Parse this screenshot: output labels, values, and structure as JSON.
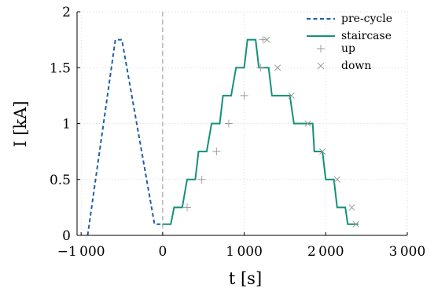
{
  "chart_data": {
    "type": "line",
    "xlabel": "t [s]",
    "ylabel": "I [kA]",
    "xlim": [
      -1050,
      3000
    ],
    "ylim": [
      0,
      2
    ],
    "xticks": [
      -1000,
      0,
      1000,
      2000,
      3000
    ],
    "xtick_labels": [
      "−1 000",
      "0",
      "1 000",
      "2 000",
      "3 000"
    ],
    "yticks": [
      0,
      0.5,
      1,
      1.5,
      2
    ],
    "ytick_labels": [
      "0",
      "0.5",
      "1",
      "1.5",
      "2"
    ],
    "grid": true,
    "vline_x": 0,
    "legend_position": "top-right",
    "colors": {
      "pre_cycle": "#1f5fa8",
      "staircase": "#13917a",
      "marker": "#999999",
      "vline": "#aaaaaa",
      "grid": "#d9d9d9"
    },
    "series": [
      {
        "name": "pre-cycle",
        "style": "dashed",
        "x": [
          -920,
          -580,
          -500,
          -100,
          0
        ],
        "y": [
          0,
          1.75,
          1.75,
          0.1,
          0.1
        ]
      },
      {
        "name": "staircase",
        "style": "solid",
        "x": [
          0,
          100,
          140,
          240,
          300,
          400,
          440,
          540,
          600,
          700,
          740,
          840,
          900,
          1000,
          1040,
          1140,
          1180,
          1300,
          1340,
          1440,
          1490,
          1560,
          1610,
          1700,
          1740,
          1840,
          1860,
          1960,
          2000,
          2100,
          2140,
          2240,
          2270,
          2370,
          2400
        ],
        "y": [
          0.1,
          0.1,
          0.25,
          0.25,
          0.5,
          0.5,
          0.75,
          0.75,
          1.0,
          1.0,
          1.25,
          1.25,
          1.5,
          1.5,
          1.75,
          1.75,
          1.5,
          1.5,
          1.25,
          1.25,
          1.25,
          1.25,
          1.0,
          1.0,
          1.0,
          1.0,
          0.75,
          0.75,
          0.5,
          0.5,
          0.25,
          0.25,
          0.1,
          0.1,
          0.1
        ]
      },
      {
        "name": "up",
        "style": "marker-plus",
        "x": [
          300,
          480,
          660,
          810,
          1000,
          1200,
          1230
        ],
        "y": [
          0.25,
          0.5,
          0.75,
          1.0,
          1.25,
          1.5,
          1.75
        ]
      },
      {
        "name": "down",
        "style": "marker-x",
        "x": [
          1280,
          1410,
          1580,
          1780,
          1960,
          2140,
          2320,
          2370
        ],
        "y": [
          1.75,
          1.5,
          1.25,
          1.0,
          0.75,
          0.5,
          0.25,
          0.1
        ]
      }
    ]
  }
}
